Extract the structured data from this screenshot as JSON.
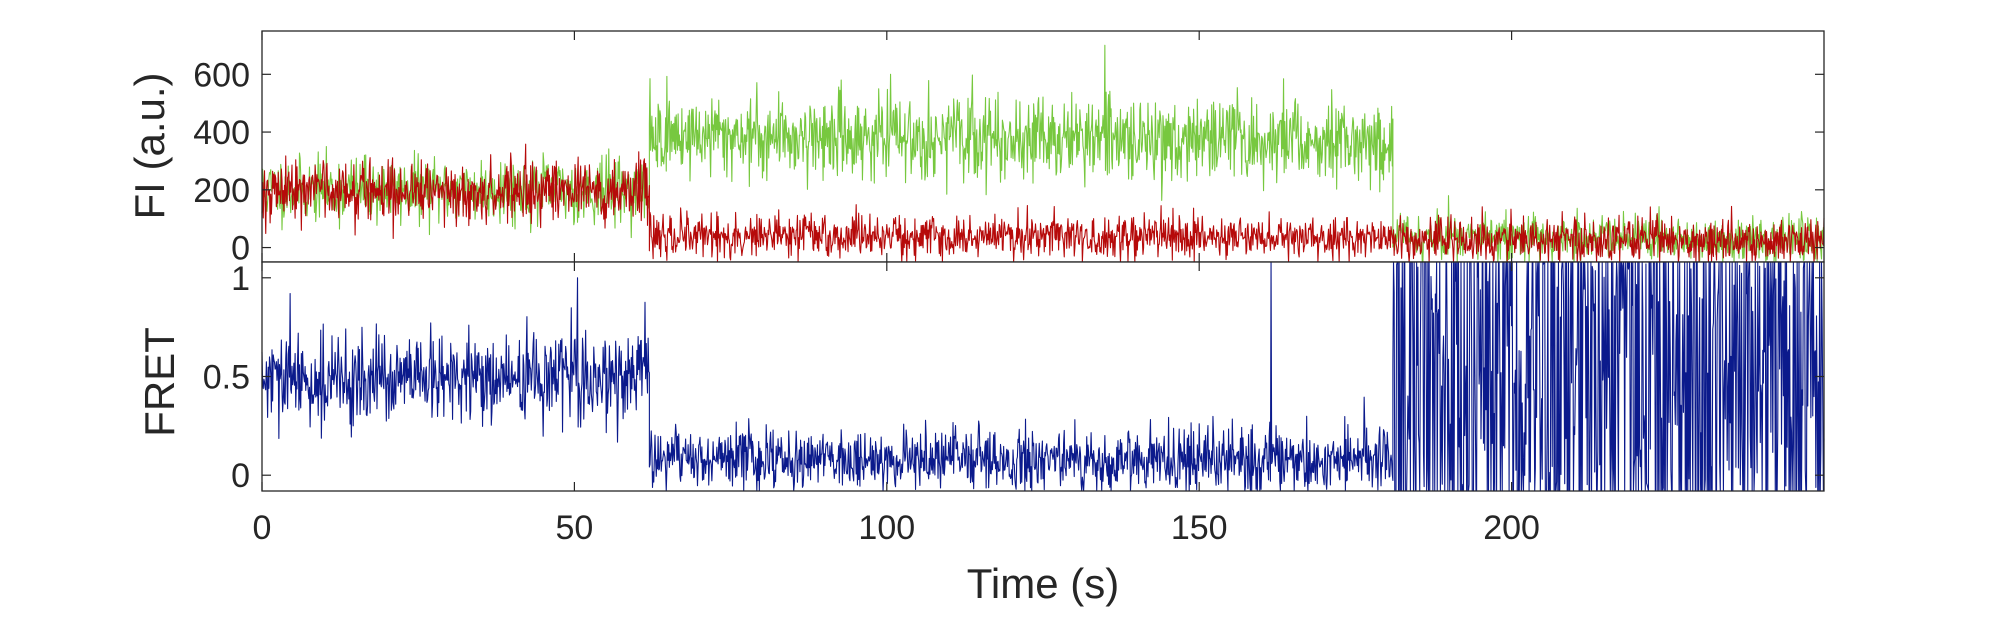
{
  "colors": {
    "donor": "#77c83f",
    "acceptor": "#b60a0a",
    "fret": "#0b1a8c",
    "axes": "#262626"
  },
  "chart_data": [
    {
      "type": "line",
      "name": "intensity",
      "ylabel": "FI (a.u.)",
      "xlim": [
        0,
        250
      ],
      "ylim": [
        -50,
        750
      ],
      "x_ticks": [
        0,
        50,
        100,
        150,
        200
      ],
      "y_ticks": [
        0,
        200,
        400,
        600
      ],
      "y_tick_labels": [
        "0",
        "200",
        "400",
        "600"
      ],
      "series": [
        {
          "color_key": "donor",
          "sample_interval": 0.1,
          "segments": [
            {
              "t_start": 0,
              "t_end": 62,
              "mean_start": 200,
              "mean_end": 200,
              "noise_sd": 55
            },
            {
              "t_start": 62,
              "t_end": 181,
              "mean_start": 390,
              "mean_end": 370,
              "noise_sd": 70
            },
            {
              "t_start": 181,
              "t_end": 250,
              "mean_start": 40,
              "mean_end": 20,
              "noise_sd": 38
            }
          ]
        },
        {
          "color_key": "acceptor",
          "sample_interval": 0.1,
          "segments": [
            {
              "t_start": 0,
              "t_end": 62,
              "mean_start": 200,
              "mean_end": 200,
              "noise_sd": 55
            },
            {
              "t_start": 62,
              "t_end": 181,
              "mean_start": 40,
              "mean_end": 35,
              "noise_sd": 38
            },
            {
              "t_start": 181,
              "t_end": 250,
              "mean_start": 30,
              "mean_end": 20,
              "noise_sd": 38
            }
          ]
        }
      ]
    },
    {
      "type": "line",
      "name": "fret",
      "xlabel": "Time (s)",
      "ylabel": "FRET",
      "xlim": [
        0,
        250
      ],
      "ylim": [
        -0.08,
        1.08
      ],
      "x_ticks": [
        0,
        50,
        100,
        150,
        200
      ],
      "x_tick_labels": [
        "0",
        "50",
        "100",
        "150",
        "200"
      ],
      "y_ticks": [
        0,
        0.5,
        1
      ],
      "y_tick_labels": [
        "0",
        "0.5",
        "1"
      ],
      "series": [
        {
          "color_key": "fret",
          "sample_interval": 0.1,
          "segments": [
            {
              "t_start": 0,
              "t_end": 62,
              "mean_start": 0.47,
              "mean_end": 0.5,
              "noise_sd": 0.11
            },
            {
              "t_start": 62,
              "t_end": 181,
              "mean_start": 0.09,
              "mean_end": 0.07,
              "noise_sd": 0.08
            },
            {
              "t_start": 181,
              "t_end": 250,
              "mean_start": 0.5,
              "mean_end": 0.5,
              "noise_sd": 0.9
            }
          ],
          "spikes": [
            {
              "x": 4.5,
              "y": 0.92
            },
            {
              "x": 50.5,
              "y": 1.0
            },
            {
              "x": 161.5,
              "y": 1.08
            }
          ]
        }
      ]
    }
  ]
}
